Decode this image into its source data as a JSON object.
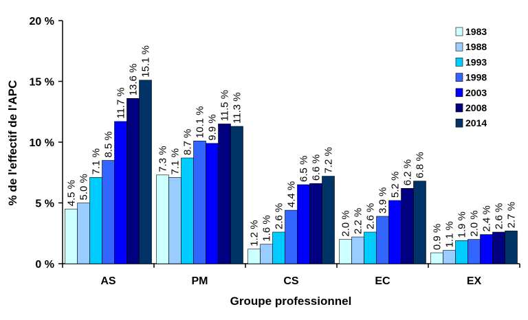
{
  "chart_data": {
    "type": "bar",
    "title": "",
    "xlabel": "Groupe professionnel",
    "ylabel": "% de l'effectif de l'APC",
    "categories": [
      "AS",
      "PM",
      "CS",
      "EC",
      "EX"
    ],
    "ylim": [
      0,
      20
    ],
    "y_ticks": [
      0,
      5,
      10,
      15,
      20
    ],
    "y_tick_labels": [
      "0 %",
      "5 %",
      "10 %",
      "15 %",
      "20 %"
    ],
    "grid": false,
    "legend_position": "top-right",
    "series": [
      {
        "name": "1983",
        "color": "#ccffff",
        "values": [
          4.5,
          7.3,
          1.2,
          2.0,
          0.9
        ],
        "labels": [
          "4.5 %",
          "7.3 %",
          "1.2 %",
          "2.0 %",
          "0.9 %"
        ]
      },
      {
        "name": "1988",
        "color": "#99ccff",
        "values": [
          5.0,
          7.1,
          1.6,
          2.2,
          1.1
        ],
        "labels": [
          "5.0 %",
          "7.1 %",
          "1.6 %",
          "2.2 %",
          "1.1 %"
        ]
      },
      {
        "name": "1993",
        "color": "#00ccff",
        "values": [
          7.1,
          8.7,
          2.6,
          2.6,
          1.9
        ],
        "labels": [
          "7.1 %",
          "8.7 %",
          "2.6 %",
          "2.6 %",
          "1.9 %"
        ]
      },
      {
        "name": "1998",
        "color": "#3366ff",
        "values": [
          8.5,
          10.1,
          4.4,
          3.9,
          2.0
        ],
        "labels": [
          "8.5 %",
          "10.1 %",
          "4.4 %",
          "3.9 %",
          "2.0 %"
        ]
      },
      {
        "name": "2003",
        "color": "#0000ff",
        "values": [
          11.7,
          9.9,
          6.5,
          5.2,
          2.4
        ],
        "labels": [
          "11.7 %",
          "9.9 %",
          "6.5 %",
          "5.2 %",
          "2.4 %"
        ]
      },
      {
        "name": "2008",
        "color": "#000080",
        "values": [
          13.6,
          11.5,
          6.6,
          6.2,
          2.6
        ],
        "labels": [
          "13.6 %",
          "11.5 %",
          "6.6 %",
          "6.2 %",
          "2.6 %"
        ]
      },
      {
        "name": "2014",
        "color": "#003366",
        "values": [
          15.1,
          11.3,
          7.2,
          6.8,
          2.7
        ],
        "labels": [
          "15.1 %",
          "11.3 %",
          "7.2 %",
          "6.8 %",
          "2.7 %"
        ]
      }
    ]
  }
}
